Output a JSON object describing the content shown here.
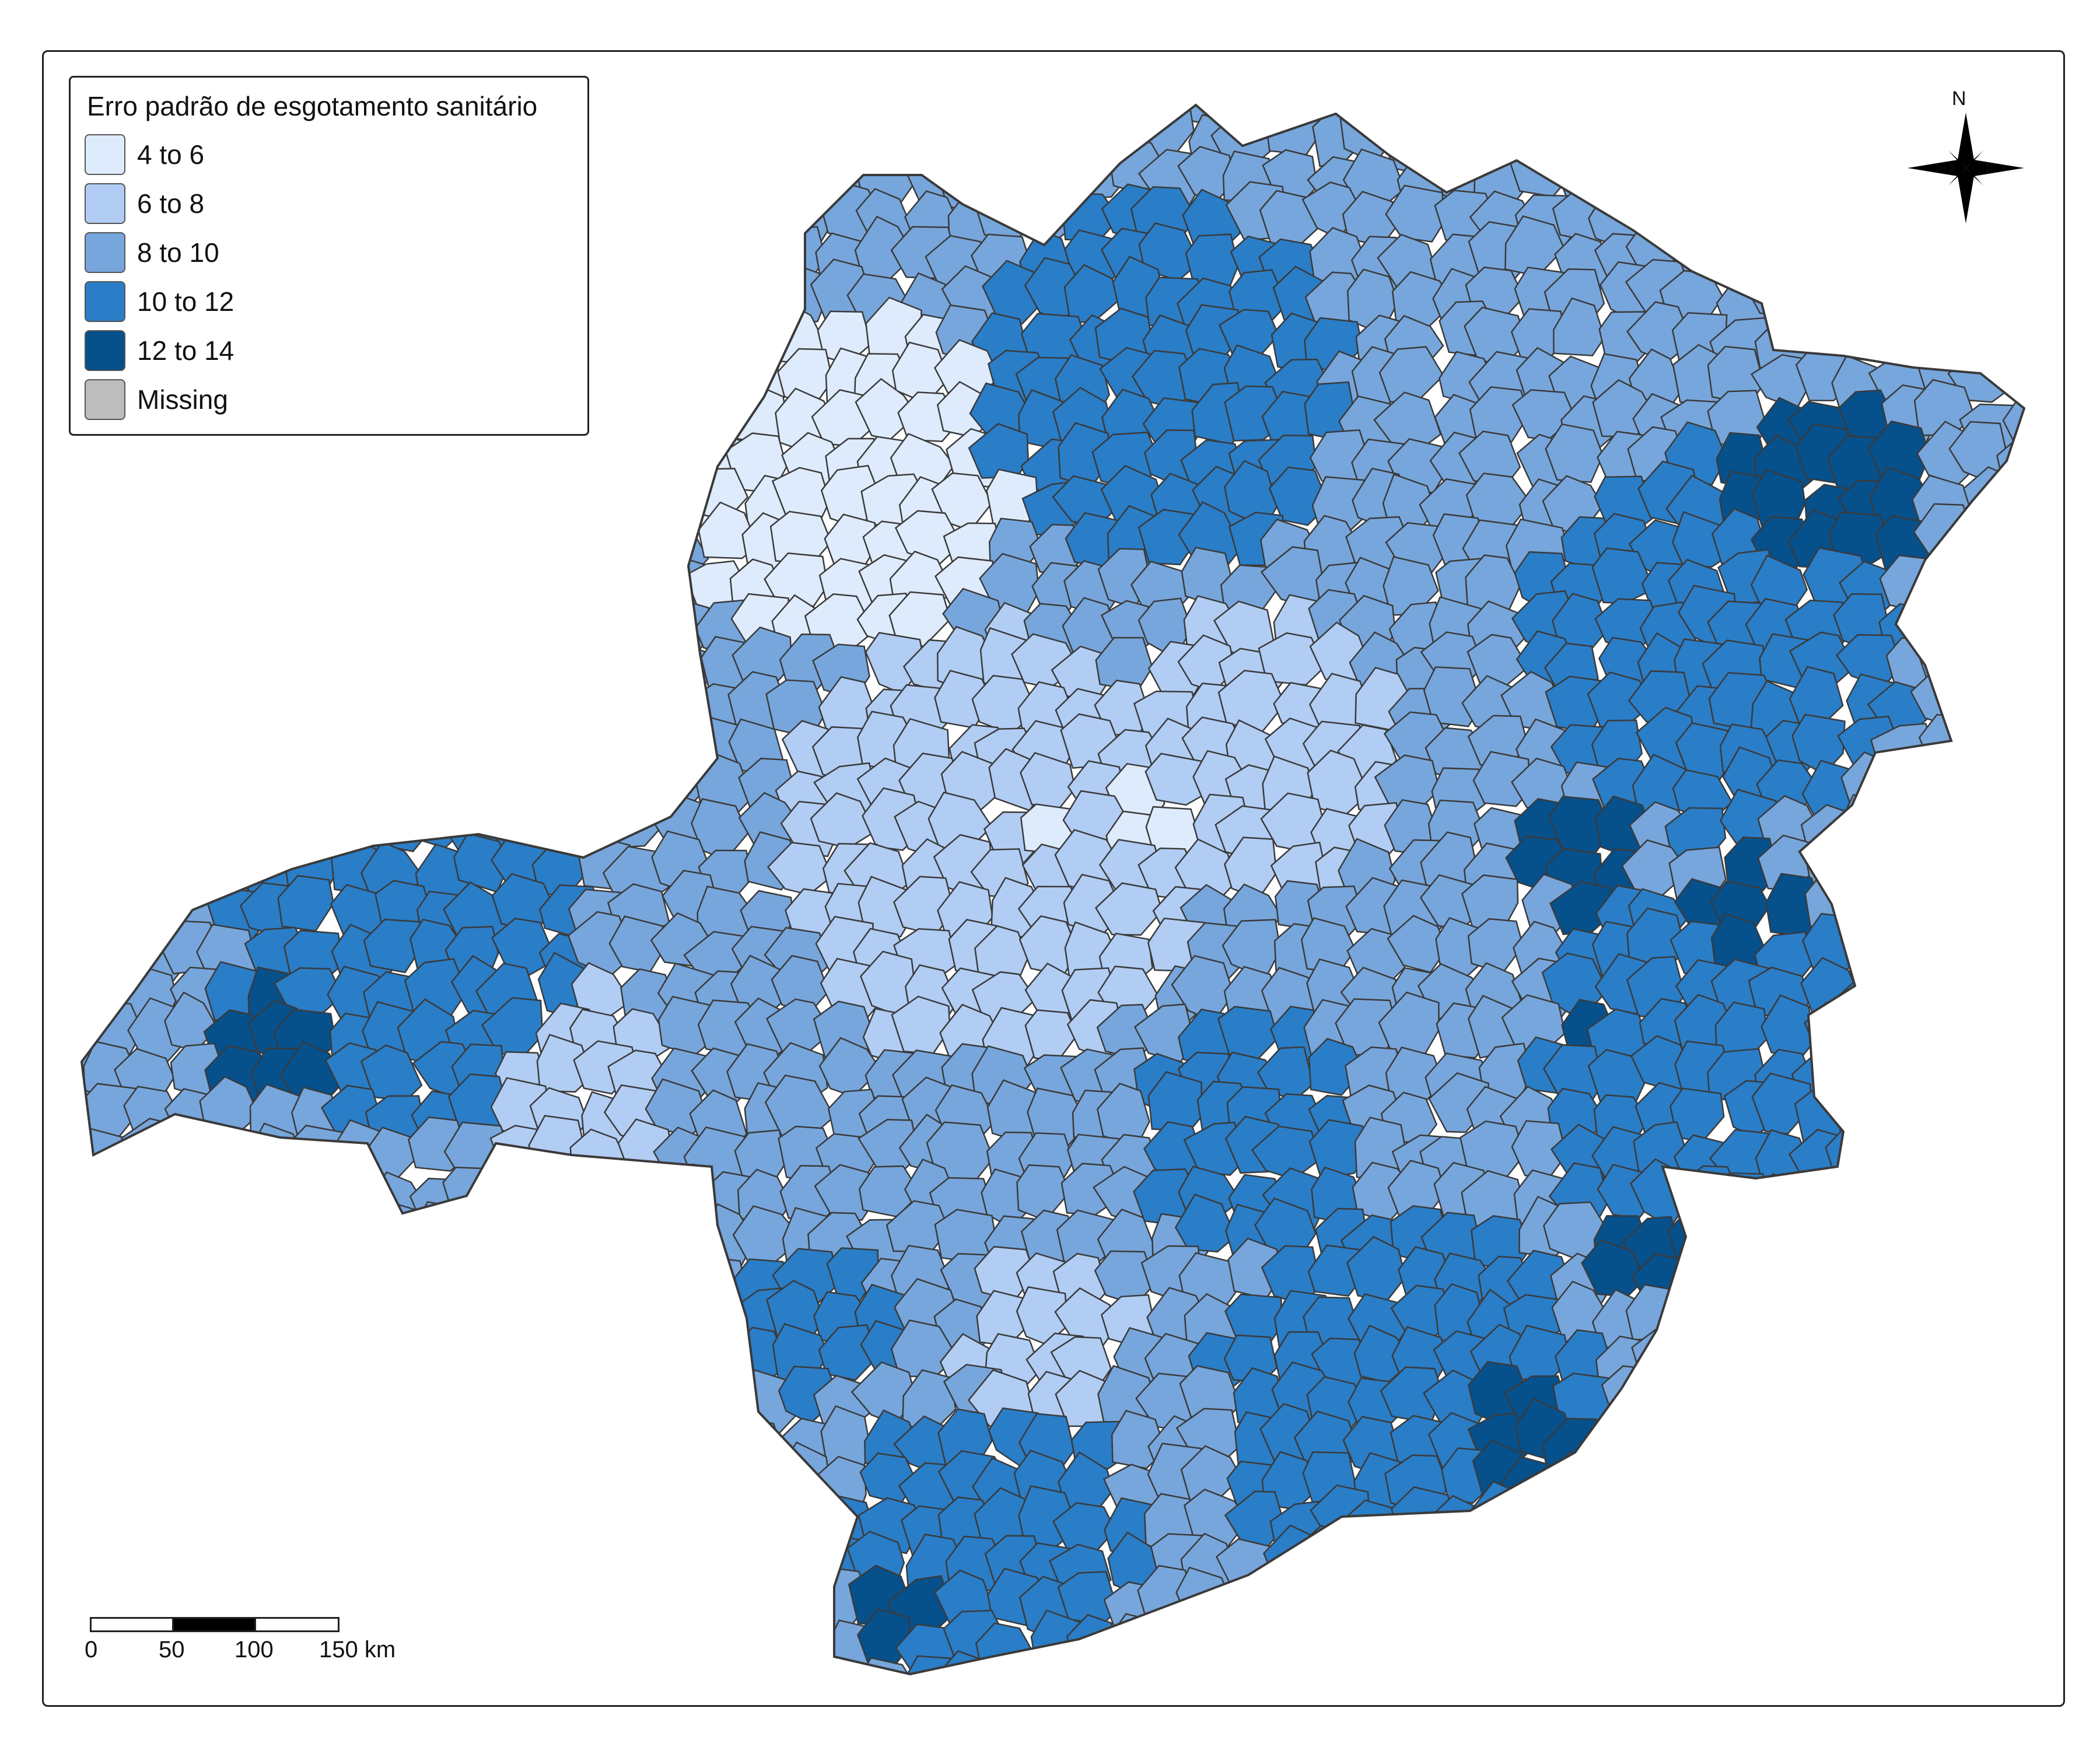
{
  "legend": {
    "title": "Erro padrão de esgotamento sanitário",
    "items": [
      {
        "label": "4 to 6",
        "color": "#deebfc"
      },
      {
        "label": "6 to 8",
        "color": "#b1cdf4"
      },
      {
        "label": "8 to 10",
        "color": "#77a6dc"
      },
      {
        "label": "10 to 12",
        "color": "#2a7dc7"
      },
      {
        "label": "12 to 14",
        "color": "#06508c"
      },
      {
        "label": "Missing",
        "color": "#bdbdbd"
      }
    ]
  },
  "north_arrow": {
    "label": "N",
    "icon": "compass-rose-icon"
  },
  "scale_bar": {
    "ticks": [
      "0",
      "50",
      "100",
      "150 km"
    ]
  },
  "colors": {
    "border": "#3a3a3a",
    "frame": "#222222"
  }
}
